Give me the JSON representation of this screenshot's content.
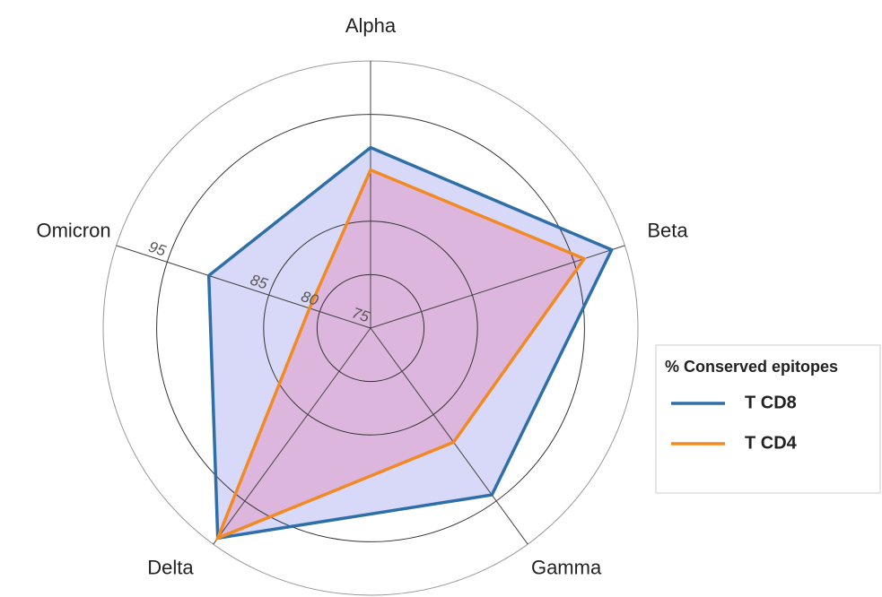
{
  "chart_data": {
    "type": "radar",
    "categories": [
      "Alpha",
      "Beta",
      "Gamma",
      "Delta",
      "Omicron"
    ],
    "series": [
      {
        "name": "T CD8",
        "color": "#2e6fa7",
        "fill": "#c8c8f5",
        "values": [
          91.9,
          98.7,
          94.3,
          99.3,
          90.9
        ]
      },
      {
        "name": "T CD4",
        "color": "#f28a24",
        "fill": "#e0a8d2",
        "values": [
          89.8,
          96.0,
          88.2,
          99.3,
          81.0
        ]
      }
    ],
    "ylim": [
      75,
      100
    ],
    "yticks": [
      75,
      80,
      85,
      95
    ],
    "legend_title": "% Conserved epitopes",
    "legend": "right"
  }
}
